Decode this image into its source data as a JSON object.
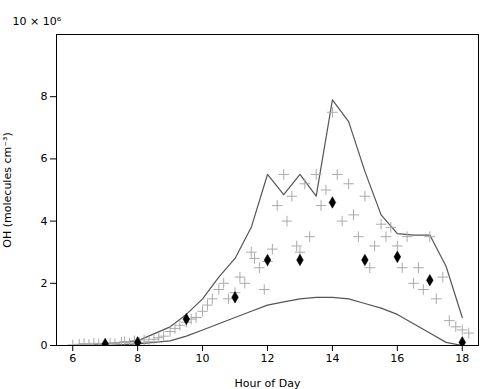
{
  "chart_data": {
    "type": "scatter",
    "xlabel": "Hour of Day",
    "ylabel": "OH (molecules cm⁻³)",
    "annotation": "10 × 10⁶",
    "xlim": [
      5.5,
      18.5
    ],
    "ylim": [
      0,
      10
    ],
    "xticks": [
      6,
      8,
      10,
      12,
      14,
      16,
      18
    ],
    "yticks": [
      0,
      2,
      4,
      6,
      8
    ],
    "grid": false,
    "series": [
      {
        "type": "line",
        "color": "#555555",
        "x": [
          6.0,
          7.0,
          8.0,
          9.0,
          9.5,
          10.0,
          10.5,
          11.0,
          11.5,
          12.0,
          12.5,
          13.0,
          13.5,
          14.0,
          14.5,
          15.0,
          15.5,
          16.0,
          16.5,
          17.0,
          17.5,
          18.0
        ],
        "values": [
          0.0,
          0.05,
          0.15,
          0.6,
          1.0,
          1.5,
          2.2,
          2.8,
          3.8,
          5.5,
          4.85,
          5.5,
          4.8,
          7.9,
          7.2,
          5.6,
          4.2,
          3.6,
          3.55,
          3.55,
          2.55,
          0.9
        ]
      },
      {
        "type": "line",
        "color": "#555555",
        "x": [
          6.0,
          7.0,
          8.0,
          9.0,
          9.5,
          10.0,
          10.5,
          11.0,
          11.5,
          12.0,
          12.5,
          13.0,
          13.5,
          14.0,
          14.5,
          15.0,
          15.5,
          16.0,
          16.5,
          17.0,
          17.5,
          18.0
        ],
        "values": [
          0.0,
          0.0,
          0.05,
          0.15,
          0.3,
          0.5,
          0.7,
          0.9,
          1.1,
          1.3,
          1.4,
          1.5,
          1.55,
          1.55,
          1.5,
          1.35,
          1.2,
          1.0,
          0.7,
          0.4,
          0.1,
          0.0
        ]
      },
      {
        "type": "scatter",
        "marker": "plus",
        "color": "#aaaaaa",
        "x": [
          6.0,
          6.2,
          6.35,
          6.5,
          6.65,
          6.8,
          7.0,
          7.15,
          7.3,
          7.5,
          7.6,
          7.75,
          7.9,
          8.05,
          8.2,
          8.35,
          8.5,
          8.65,
          8.8,
          9.0,
          9.15,
          9.3,
          9.5,
          9.65,
          9.8,
          10.0,
          10.15,
          10.3,
          10.5,
          10.65,
          10.8,
          11.0,
          11.15,
          11.3,
          11.5,
          11.6,
          11.75,
          11.9,
          12.0,
          12.15,
          12.3,
          12.5,
          12.6,
          12.75,
          12.9,
          13.0,
          13.15,
          13.3,
          13.5,
          13.65,
          13.8,
          14.0,
          14.15,
          14.3,
          14.5,
          14.65,
          14.8,
          15.0,
          15.15,
          15.3,
          15.5,
          15.65,
          15.8,
          16.0,
          16.15,
          16.3,
          16.5,
          16.65,
          16.8,
          17.0,
          17.2,
          17.4,
          17.6,
          17.8,
          18.0,
          18.2
        ],
        "values": [
          0.02,
          0.04,
          0.06,
          0.03,
          0.07,
          0.05,
          0.05,
          0.08,
          0.06,
          0.1,
          0.12,
          0.08,
          0.15,
          0.1,
          0.18,
          0.12,
          0.2,
          0.25,
          0.3,
          0.45,
          0.55,
          0.65,
          0.75,
          0.85,
          0.9,
          1.1,
          1.3,
          1.5,
          1.8,
          2.0,
          1.5,
          1.7,
          2.2,
          2.0,
          3.0,
          2.8,
          2.5,
          1.8,
          2.7,
          3.1,
          4.5,
          5.5,
          4.0,
          4.8,
          3.2,
          3.0,
          5.2,
          3.5,
          5.5,
          4.5,
          5.0,
          7.5,
          5.5,
          4.0,
          5.2,
          4.2,
          3.5,
          4.8,
          2.5,
          3.2,
          3.9,
          3.5,
          3.8,
          3.2,
          2.5,
          3.5,
          2.0,
          2.5,
          1.8,
          3.5,
          1.5,
          2.2,
          0.8,
          0.6,
          0.5,
          0.4
        ]
      },
      {
        "type": "scatter",
        "marker": "diamond",
        "color": "#000000",
        "x": [
          7.0,
          8.0,
          9.5,
          11.0,
          12.0,
          13.0,
          14.0,
          15.0,
          16.0,
          17.0,
          18.0
        ],
        "values": [
          0.05,
          0.1,
          0.85,
          1.55,
          2.75,
          2.75,
          4.6,
          2.75,
          2.85,
          2.1,
          0.1
        ]
      }
    ]
  }
}
